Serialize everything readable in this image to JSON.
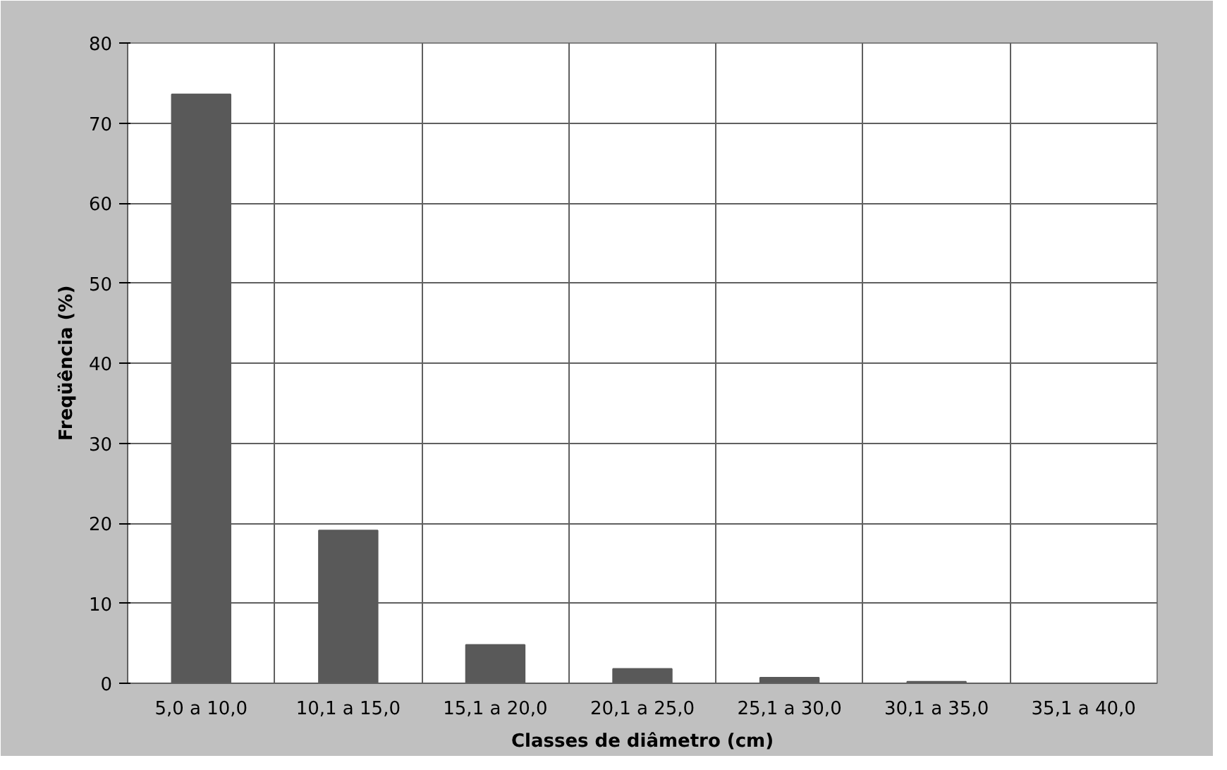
{
  "chart_data": {
    "type": "bar",
    "xlabel": "Classes de diâmetro (cm)",
    "ylabel": "Freqüência (%)",
    "categories": [
      "5,0 a 10,0",
      "10,1 a 15,0",
      "15,1 a 20,0",
      "20,1 a 25,0",
      "25,1 a 30,0",
      "30,1 a 35,0",
      "35,1 a 40,0"
    ],
    "values": [
      73.6,
      19.1,
      4.8,
      1.8,
      0.7,
      0.2,
      0
    ],
    "color": "#595959",
    "ylim": [
      0,
      80
    ],
    "yticks": [
      0,
      10,
      20,
      30,
      40,
      50,
      60,
      70,
      80
    ],
    "grid": true
  }
}
